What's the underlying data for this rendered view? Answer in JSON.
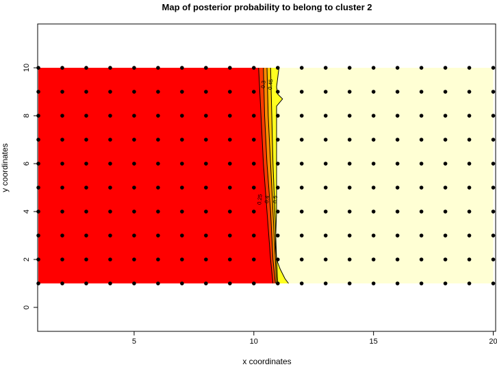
{
  "chart_data": {
    "type": "heatmap",
    "title": "Map of posterior probability to belong to cluster  2",
    "xlabel": "x coordinates",
    "ylabel": "y coordinates",
    "xlim": [
      0.97,
      20.1
    ],
    "ylim": [
      -1.0,
      11.83
    ],
    "xticks": [
      5,
      10,
      15,
      20
    ],
    "yticks": [
      0,
      2,
      4,
      6,
      8,
      10
    ],
    "grid": false,
    "points": {
      "x_values": [
        1,
        2,
        3,
        4,
        5,
        6,
        7,
        8,
        9,
        10,
        11,
        12,
        13,
        14,
        15,
        16,
        17,
        18,
        19,
        20
      ],
      "y_values": [
        1,
        2,
        3,
        4,
        5,
        6,
        7,
        8,
        9,
        10
      ]
    },
    "fill_extent": {
      "x": [
        1,
        20
      ],
      "y": [
        1,
        10
      ]
    },
    "contours": [
      {
        "level": 0.25,
        "label": "0.25",
        "points": [
          [
            10.2,
            10
          ],
          [
            10.3,
            8
          ],
          [
            10.4,
            6
          ],
          [
            10.55,
            4
          ],
          [
            10.7,
            2
          ],
          [
            10.8,
            1
          ]
        ]
      },
      {
        "level": 0.3,
        "label": "0.3",
        "points": [
          [
            10.4,
            10
          ],
          [
            10.45,
            8
          ],
          [
            10.55,
            6
          ],
          [
            10.7,
            4
          ],
          [
            10.8,
            2
          ],
          [
            10.9,
            1
          ]
        ]
      },
      {
        "level": 0.4,
        "label": "0.4",
        "points": [
          [
            10.55,
            10
          ],
          [
            10.6,
            8
          ],
          [
            10.7,
            6
          ],
          [
            10.8,
            4
          ],
          [
            10.9,
            2
          ],
          [
            10.95,
            1
          ]
        ]
      },
      {
        "level": 0.45,
        "label": "0.45",
        "points": [
          [
            10.7,
            10
          ],
          [
            10.75,
            8
          ],
          [
            10.8,
            6
          ],
          [
            10.88,
            4
          ],
          [
            10.95,
            2
          ],
          [
            11.0,
            1
          ]
        ]
      },
      {
        "level": 0.5,
        "label": "0.5",
        "points": [
          [
            11.05,
            10
          ],
          [
            10.95,
            9.2
          ],
          [
            11.0,
            8.9
          ],
          [
            11.2,
            8.7
          ],
          [
            10.95,
            8.4
          ],
          [
            10.95,
            6
          ],
          [
            10.95,
            4
          ],
          [
            10.9,
            2.6
          ],
          [
            10.95,
            2.0
          ],
          [
            11.1,
            1.6
          ],
          [
            11.3,
            1.2
          ],
          [
            11.45,
            1
          ]
        ]
      }
    ],
    "colors": {
      "below_0.25": "#FF0000",
      "0.25_0.3": "#FF3A00",
      "0.3_0.4": "#FF8A00",
      "0.4_0.45": "#FFC800",
      "0.45_0.5": "#FFFF20",
      "above_0.5": "#FFFFD4",
      "points": "#000000",
      "contour": "#000000"
    }
  }
}
